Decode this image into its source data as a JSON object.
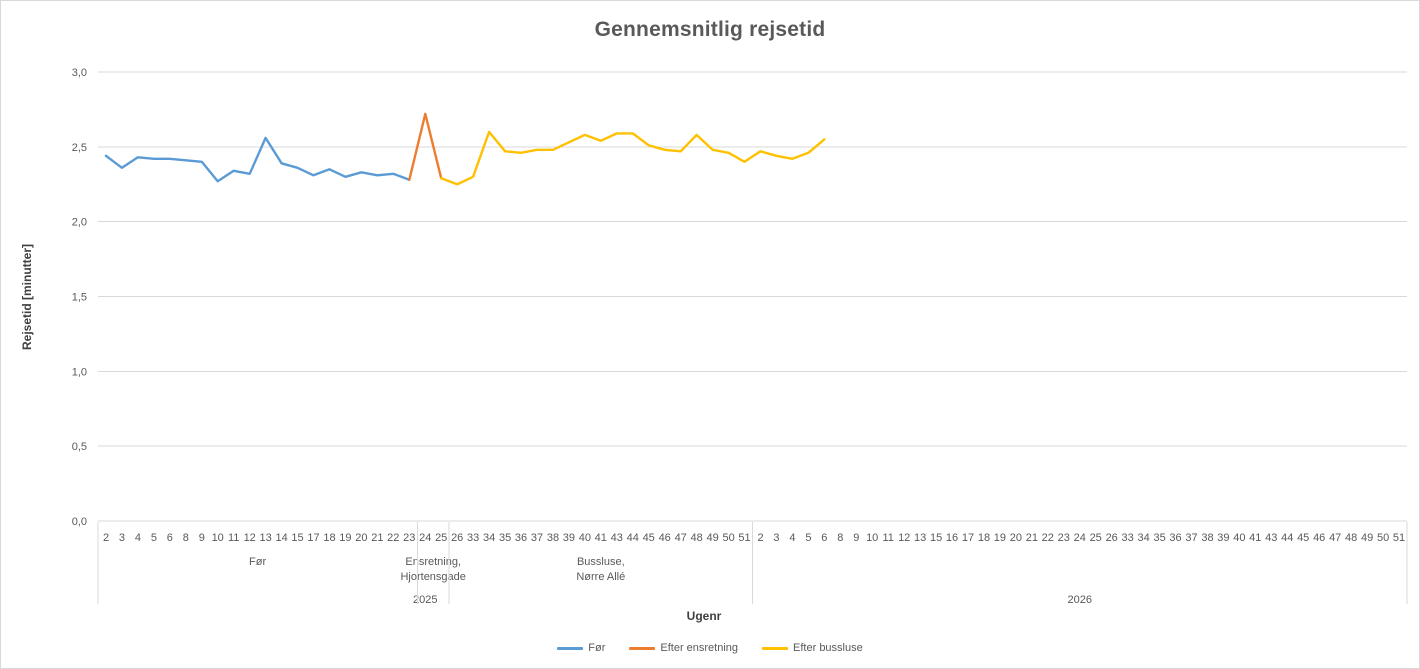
{
  "chart_data": {
    "type": "line",
    "title": "Gennemsnitlig rejsetid",
    "ylabel": "Rejsetid [minutter]",
    "xlabel": "Ugenr",
    "ylim": [
      0,
      3.0
    ],
    "ytick_labels": [
      "0,0",
      "0,5",
      "1,0",
      "1,5",
      "2,0",
      "2,5",
      "3,0"
    ],
    "grid": true,
    "legend_position": "bottom",
    "grid_color": "#D9D9D9",
    "text_color": "#595959",
    "x_categories": [
      "2",
      "3",
      "4",
      "5",
      "6",
      "8",
      "9",
      "10",
      "11",
      "12",
      "13",
      "14",
      "15",
      "17",
      "18",
      "19",
      "20",
      "21",
      "22",
      "23",
      "24",
      "25",
      "26",
      "33",
      "34",
      "35",
      "36",
      "37",
      "38",
      "39",
      "40",
      "41",
      "43",
      "44",
      "45",
      "46",
      "47",
      "48",
      "49",
      "50",
      "51",
      "2",
      "3",
      "4",
      "5",
      "6",
      "8",
      "9",
      "10",
      "11",
      "12",
      "13",
      "15",
      "16",
      "17",
      "18",
      "19",
      "20",
      "21",
      "22",
      "23",
      "24",
      "25",
      "26",
      "33",
      "34",
      "35",
      "36",
      "37",
      "38",
      "39",
      "40",
      "41",
      "43",
      "44",
      "45",
      "46",
      "47",
      "48",
      "49",
      "50",
      "51"
    ],
    "x_groups": [
      {
        "lines": [
          "Før"
        ],
        "start": 0,
        "end": 19
      },
      {
        "lines": [
          "Ensretning,",
          "Hjortensgade"
        ],
        "start": 20,
        "end": 21
      },
      {
        "lines": [
          "Bussluse,",
          "Nørre Allé"
        ],
        "start": 22,
        "end": 40
      }
    ],
    "x_years": [
      {
        "label": "2025",
        "start": 0,
        "end": 40
      },
      {
        "label": "2026",
        "start": 41,
        "end": 81
      }
    ],
    "series": [
      {
        "name": "Før",
        "color": "#5B9BD5",
        "start_index": 0,
        "values": [
          2.44,
          2.36,
          2.43,
          2.42,
          2.42,
          2.41,
          2.4,
          2.27,
          2.34,
          2.32,
          2.56,
          2.39,
          2.36,
          2.31,
          2.35,
          2.3,
          2.33,
          2.31,
          2.32,
          2.28
        ]
      },
      {
        "name": "Efter ensretning",
        "color": "#ED7D31",
        "start_index": 19,
        "values": [
          2.28,
          2.72,
          2.29
        ]
      },
      {
        "name": "Efter bussluse",
        "color": "#FFC000",
        "start_index": 21,
        "values": [
          2.29,
          2.25,
          2.3,
          2.6,
          2.47,
          2.46,
          2.48,
          2.48,
          2.53,
          2.58,
          2.54,
          2.59,
          2.59,
          2.51,
          2.48,
          2.47,
          2.58,
          2.48,
          2.46,
          2.4,
          2.47,
          2.44,
          2.42,
          2.46,
          2.55
        ]
      }
    ]
  }
}
